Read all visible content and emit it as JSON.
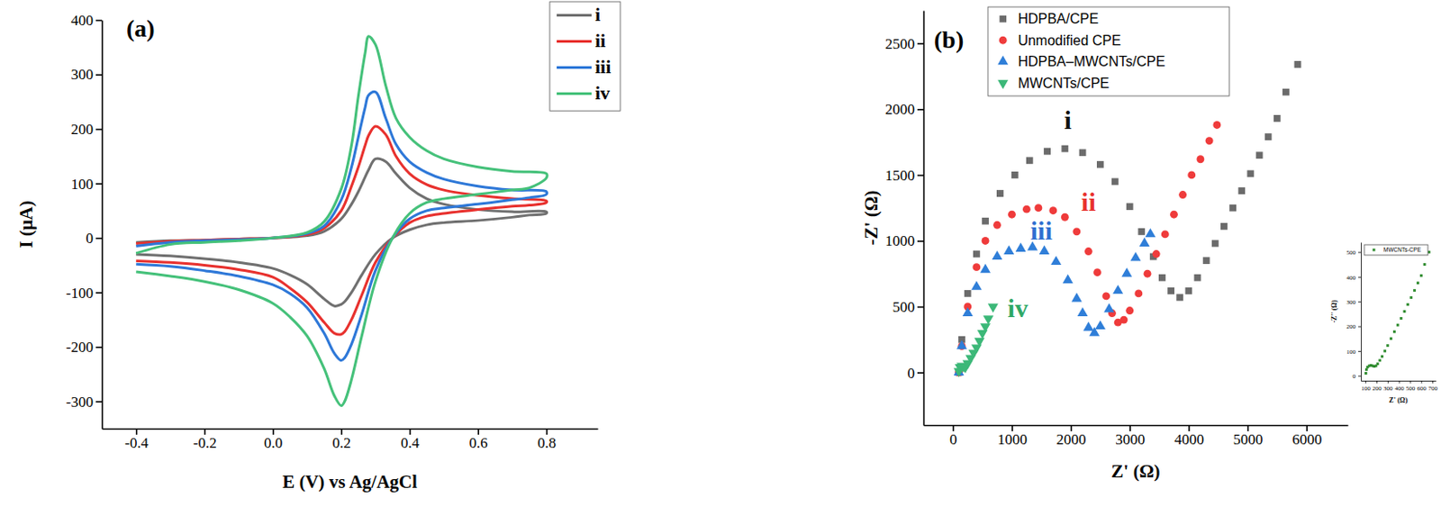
{
  "chart_data": [
    {
      "type": "line",
      "title": "(a)",
      "x_label": "E (V) vs Ag/AgCl",
      "y_label": "I (μA)",
      "xlim": [
        -0.5,
        0.95
      ],
      "xticks": [
        -0.4,
        -0.2,
        {
          "value": 0,
          "label": "0.0"
        },
        0.2,
        0.4,
        0.6,
        0.8
      ],
      "ylim": [
        -350,
        400
      ],
      "yticks": [
        -300,
        -200,
        -100,
        0,
        100,
        200,
        300,
        400
      ],
      "legend": "upper right",
      "x": [
        -0.4,
        -0.3,
        -0.2,
        -0.1,
        0,
        0.1,
        0.15,
        0.2,
        0.23,
        0.25,
        0.27,
        0.28,
        0.3,
        0.33,
        0.36,
        0.4,
        0.45,
        0.5,
        0.6,
        0.7,
        0.8,
        0.8,
        0.75,
        0.7,
        0.6,
        0.5,
        0.45,
        0.4,
        0.35,
        0.3,
        0.26,
        0.23,
        0.21,
        0.2,
        0.18,
        0.15,
        0.1,
        0.05,
        0,
        -0.1,
        -0.2,
        -0.3,
        -0.4
      ],
      "series": [
        {
          "name": "i",
          "color": "#707070",
          "values": [
            -8,
            -5,
            -4,
            -2,
            0,
            4,
            12,
            35,
            62,
            85,
            112,
            125,
            145,
            140,
            118,
            92,
            72,
            62,
            52,
            48,
            48,
            45,
            42,
            38,
            32,
            28,
            24,
            15,
            0,
            -30,
            -68,
            -100,
            -117,
            -122,
            -125,
            -112,
            -85,
            -68,
            -56,
            -45,
            -38,
            -33,
            -30
          ]
        },
        {
          "name": "ii",
          "color": "#e8312e",
          "values": [
            -10,
            -6,
            -4,
            -2,
            0,
            6,
            18,
            50,
            95,
            130,
            170,
            188,
            205,
            190,
            150,
            118,
            98,
            88,
            78,
            72,
            68,
            65,
            60,
            58,
            52,
            45,
            40,
            28,
            0,
            -45,
            -105,
            -150,
            -172,
            -177,
            -175,
            -155,
            -118,
            -92,
            -72,
            -58,
            -50,
            -45,
            -42
          ]
        },
        {
          "name": "iii",
          "color": "#2e78d8",
          "values": [
            -15,
            -8,
            -5,
            -3,
            0,
            8,
            22,
            70,
            130,
            185,
            240,
            262,
            268,
            220,
            172,
            140,
            120,
            108,
            95,
            88,
            85,
            80,
            74,
            70,
            62,
            55,
            50,
            35,
            0,
            -60,
            -140,
            -195,
            -220,
            -225,
            -212,
            -175,
            -128,
            -102,
            -86,
            -70,
            -60,
            -52,
            -48
          ]
        },
        {
          "name": "iv",
          "color": "#45c17a",
          "values": [
            -28,
            -12,
            -8,
            -5,
            0,
            10,
            30,
            90,
            170,
            260,
            340,
            370,
            355,
            280,
            220,
            185,
            160,
            145,
            130,
            122,
            118,
            110,
            92,
            88,
            80,
            72,
            65,
            45,
            0,
            -80,
            -180,
            -260,
            -300,
            -308,
            -290,
            -240,
            -180,
            -145,
            -120,
            -95,
            -80,
            -70,
            -62
          ]
        }
      ]
    },
    {
      "type": "scatter",
      "title": "(b)",
      "x_label": "Z' (Ω)",
      "y_label": "-Z' (Ω)",
      "xlim": [
        -500,
        6700
      ],
      "xticks": [
        0,
        1000,
        2000,
        3000,
        4000,
        5000,
        6000
      ],
      "ylim": [
        -400,
        2750
      ],
      "yticks": [
        0,
        500,
        1000,
        1500,
        2000,
        2500
      ],
      "legend": "upper left",
      "series": [
        {
          "name": "HDPBA/CPE",
          "color": "#6b6b6b",
          "marker": "square",
          "x": [
            100,
            150,
            250,
            400,
            550,
            800,
            1050,
            1300,
            1600,
            1900,
            2200,
            2500,
            2750,
            3000,
            3200,
            3400,
            3550,
            3700,
            3850,
            4000,
            4150,
            4300,
            4450,
            4600,
            4750,
            4900,
            5050,
            5200,
            5350,
            5500,
            5650,
            5850
          ],
          "values": [
            0,
            250,
            600,
            900,
            1150,
            1360,
            1500,
            1610,
            1680,
            1700,
            1670,
            1580,
            1450,
            1260,
            1070,
            880,
            720,
            620,
            570,
            620,
            720,
            850,
            980,
            1110,
            1250,
            1380,
            1510,
            1650,
            1790,
            1930,
            2130,
            2340
          ]
        },
        {
          "name": "Unmodified CPE",
          "color": "#ef3b3b",
          "marker": "circle",
          "x": [
            100,
            150,
            250,
            400,
            550,
            750,
            1000,
            1250,
            1450,
            1700,
            1900,
            2100,
            2300,
            2450,
            2600,
            2700,
            2800,
            2900,
            3000,
            3150,
            3300,
            3450,
            3600,
            3750,
            3900,
            4050,
            4200,
            4350,
            4480
          ],
          "values": [
            0,
            200,
            500,
            800,
            1000,
            1120,
            1200,
            1240,
            1250,
            1230,
            1180,
            1070,
            920,
            760,
            580,
            450,
            380,
            400,
            470,
            600,
            750,
            900,
            1050,
            1200,
            1350,
            1500,
            1620,
            1760,
            1880
          ]
        },
        {
          "name": "HDPBA–MWCNTs/CPE",
          "color": "#2f7ed8",
          "marker": "triangle-up",
          "x": [
            100,
            150,
            250,
            400,
            550,
            750,
            950,
            1150,
            1350,
            1550,
            1750,
            1950,
            2100,
            2200,
            2300,
            2400,
            2500,
            2650,
            2800,
            2950,
            3100,
            3250,
            3350
          ],
          "values": [
            0,
            200,
            450,
            650,
            780,
            880,
            920,
            940,
            950,
            920,
            840,
            700,
            560,
            450,
            340,
            300,
            350,
            480,
            620,
            750,
            870,
            980,
            1050
          ]
        },
        {
          "name": "MWCNTs/CPE",
          "color": "#3cb878",
          "marker": "triangle-down",
          "x": [
            100,
            120,
            150,
            180,
            210,
            250,
            300,
            350,
            400,
            450,
            500,
            550,
            600,
            680
          ],
          "values": [
            10,
            40,
            50,
            45,
            40,
            70,
            110,
            150,
            190,
            240,
            300,
            350,
            410,
            500
          ]
        }
      ],
      "annotations": [
        {
          "text": "i",
          "x": 1950,
          "y": 1850,
          "color": "#111111"
        },
        {
          "text": "ii",
          "x": 2300,
          "y": 1230,
          "color": "#e8312e"
        },
        {
          "text": "iii",
          "x": 1500,
          "y": 1010,
          "color": "#2f6fd0"
        },
        {
          "text": "iv",
          "x": 1100,
          "y": 420,
          "color": "#2fa866"
        }
      ]
    },
    {
      "type": "scatter",
      "x_label": "Z' (Ω)",
      "y_label": "-Z'' (Ω)",
      "xlim": [
        60,
        730
      ],
      "xticks": [
        100,
        200,
        300,
        400,
        500,
        600,
        700
      ],
      "ylim": [
        -20,
        540
      ],
      "yticks": [
        0,
        100,
        200,
        300,
        400,
        500
      ],
      "legend": "upper left",
      "series": [
        {
          "name": "MWCNTs-CPE",
          "color": "#2e8b2e",
          "marker": "square",
          "x": [
            105,
            110,
            120,
            135,
            150,
            165,
            180,
            195,
            210,
            230,
            250,
            275,
            300,
            330,
            360,
            390,
            420,
            450,
            480,
            510,
            540,
            570,
            600,
            630,
            670
          ],
          "values": [
            10,
            25,
            35,
            40,
            42,
            40,
            38,
            40,
            48,
            62,
            78,
            100,
            122,
            150,
            178,
            205,
            232,
            260,
            288,
            316,
            345,
            375,
            405,
            450,
            500
          ]
        }
      ]
    }
  ]
}
